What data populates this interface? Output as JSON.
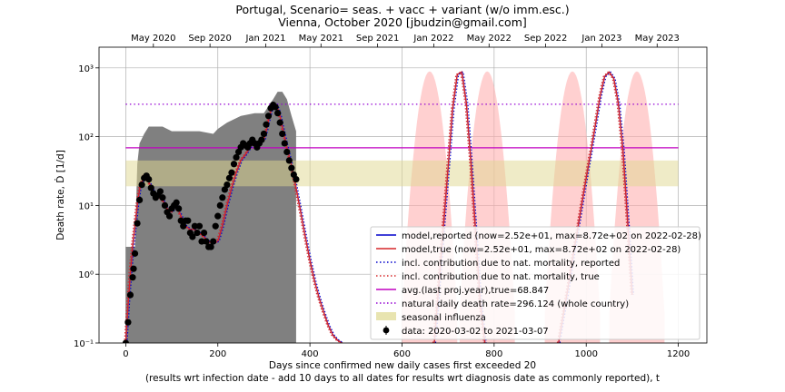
{
  "chart_data": {
    "type": "line",
    "title": "Portugal, Scenario= seas. + vacc + variant (w/o imm.esc.)",
    "subtitle": "Vienna, October 2020 [jbudzin@gmail.com]",
    "xlabel_line1": "Days since confirmed new daily cases first exceeded 20",
    "xlabel_line2": "(results wrt infection date - add 10 days to all dates for results wrt diagnosis date as commonly reported), t",
    "ylabel": "Death rate, Ḋ [1/d]",
    "yscale": "log",
    "xlim": [
      -58,
      1262
    ],
    "ylim": [
      0.1,
      2000
    ],
    "grid": true,
    "x_ticks": [
      0,
      200,
      400,
      600,
      800,
      1000,
      1200
    ],
    "y_ticks": [
      {
        "value": 0.1,
        "label": "10⁻¹"
      },
      {
        "value": 1,
        "label": "10⁰"
      },
      {
        "value": 10,
        "label": "10¹"
      },
      {
        "value": 100,
        "label": "10²"
      },
      {
        "value": 1000,
        "label": "10³"
      }
    ],
    "top_axis_ticks": [
      {
        "x": 60,
        "label": "May 2020"
      },
      {
        "x": 183,
        "label": "Sep 2020"
      },
      {
        "x": 304,
        "label": "Jan 2021"
      },
      {
        "x": 424,
        "label": "May 2021"
      },
      {
        "x": 547,
        "label": "Sep 2021"
      },
      {
        "x": 669,
        "label": "Jan 2022"
      },
      {
        "x": 789,
        "label": "May 2022"
      },
      {
        "x": 912,
        "label": "Sep 2022"
      },
      {
        "x": 1034,
        "label": "Jan 2023"
      },
      {
        "x": 1154,
        "label": "May 2023"
      }
    ],
    "legend_position": "lower-right",
    "legend": [
      {
        "label": "model,reported (now=2.52e+01, max=8.72e+02 on 2022-02-28)",
        "color": "#0000cc",
        "style": "solid"
      },
      {
        "label": "model,true (now=2.52e+01, max=8.72e+02 on 2022-02-28)",
        "color": "#d62728",
        "style": "solid"
      },
      {
        "label": "incl. contribution due to nat. mortality, reported",
        "color": "#0000cc",
        "style": "dotted"
      },
      {
        "label": "incl. contribution due to nat. mortality, true",
        "color": "#d62728",
        "style": "dotted"
      },
      {
        "label": "avg.(last proj.year),true=68.847",
        "color": "#c000c0",
        "style": "solid"
      },
      {
        "label": "natural daily death rate=296.124 (whole country)",
        "color": "#9400d3",
        "style": "dotted"
      },
      {
        "label": "seasonal influenza",
        "color": "#e8e4b0",
        "style": "patch"
      },
      {
        "label": "data: 2020-03-02 to 2021-03-07",
        "color": "#000000",
        "style": "errorbar"
      }
    ],
    "reference_lines": [
      {
        "name": "avg.(last proj.year),true",
        "y": 68.847,
        "x": [
          0,
          1200
        ]
      },
      {
        "name": "natural daily death rate",
        "y": 296.124,
        "x": [
          0,
          1200
        ]
      }
    ],
    "influenza_band": {
      "y": [
        19,
        45
      ],
      "x": [
        0,
        1200
      ]
    },
    "data_series": {
      "x": [
        0,
        5,
        10,
        15,
        17,
        20,
        25,
        30,
        35,
        40,
        45,
        50,
        55,
        60,
        65,
        70,
        75,
        80,
        85,
        90,
        95,
        100,
        105,
        110,
        115,
        120,
        125,
        130,
        135,
        140,
        145,
        150,
        155,
        160,
        165,
        170,
        175,
        180,
        185,
        190,
        195,
        200,
        205,
        210,
        215,
        220,
        225,
        230,
        235,
        240,
        245,
        250,
        255,
        260,
        265,
        270,
        275,
        280,
        285,
        290,
        295,
        300,
        305,
        310,
        315,
        320,
        325,
        330,
        335,
        340,
        345,
        350,
        355,
        360,
        365,
        370
      ],
      "y": [
        0.1,
        0.2,
        0.5,
        0.9,
        1.2,
        2.0,
        5.5,
        12,
        20,
        25,
        27,
        24,
        18,
        15,
        13,
        14,
        16,
        13,
        10,
        8,
        7,
        9,
        10,
        11,
        9,
        6,
        5,
        6,
        6,
        4,
        3.5,
        5,
        4,
        5,
        3,
        4,
        3,
        2.5,
        2.5,
        3,
        5,
        7,
        10,
        13,
        17,
        20,
        25,
        30,
        40,
        50,
        60,
        70,
        80,
        75,
        70,
        80,
        90,
        80,
        70,
        80,
        90,
        110,
        150,
        200,
        260,
        290,
        270,
        220,
        160,
        110,
        80,
        60,
        45,
        35,
        28,
        24
      ]
    },
    "model_series": {
      "x": [
        0,
        5,
        10,
        15,
        20,
        25,
        30,
        40,
        50,
        60,
        70,
        80,
        90,
        100,
        110,
        120,
        130,
        140,
        150,
        160,
        170,
        180,
        190,
        200,
        210,
        220,
        230,
        240,
        250,
        260,
        270,
        280,
        290,
        300,
        305,
        310,
        315,
        320,
        325,
        330,
        335,
        340,
        345,
        350,
        360,
        370,
        380,
        390,
        400,
        410,
        420,
        430,
        440,
        450,
        460,
        470
      ],
      "y": [
        0.1,
        0.35,
        1.0,
        2.5,
        5.0,
        10,
        17,
        27,
        22,
        16,
        14,
        12,
        9,
        8,
        10,
        7,
        5,
        4.5,
        4.5,
        4,
        3.5,
        3,
        2.8,
        3,
        5,
        10,
        18,
        30,
        45,
        55,
        70,
        85,
        80,
        90,
        120,
        170,
        230,
        280,
        300,
        260,
        200,
        140,
        100,
        70,
        38,
        18,
        8,
        3.5,
        1.6,
        0.8,
        0.45,
        0.28,
        0.18,
        0.13,
        0.11,
        0.1
      ]
    },
    "future_wave_1": {
      "x": [
        670,
        680,
        690,
        700,
        710,
        720,
        730,
        740,
        750,
        760,
        770,
        780
      ],
      "y": [
        0.1,
        0.7,
        5,
        35,
        250,
        800,
        872,
        300,
        40,
        4,
        0.4,
        0.1
      ]
    },
    "future_wave_2": {
      "x": [
        940,
        950,
        960,
        970,
        980,
        990,
        1000,
        1010,
        1020,
        1030,
        1040,
        1050,
        1060,
        1070,
        1080,
        1090,
        1100
      ],
      "y": [
        0.1,
        0.25,
        0.6,
        1.6,
        4,
        10,
        25,
        60,
        150,
        380,
        750,
        870,
        700,
        300,
        60,
        6,
        0.5
      ]
    },
    "uncertainty_band_red_centers": [
      660,
      785,
      970,
      1110
    ],
    "uncertainty_band_grey_upper": {
      "x": [
        0,
        20,
        25,
        30,
        40,
        50,
        80,
        100,
        120,
        160,
        190,
        200,
        220,
        250,
        280,
        300,
        320,
        330,
        340,
        350,
        360,
        370
      ],
      "y": [
        2.5,
        2.5,
        40,
        80,
        110,
        140,
        140,
        120,
        120,
        120,
        110,
        130,
        160,
        200,
        220,
        220,
        350,
        450,
        450,
        350,
        200,
        120
      ]
    }
  }
}
